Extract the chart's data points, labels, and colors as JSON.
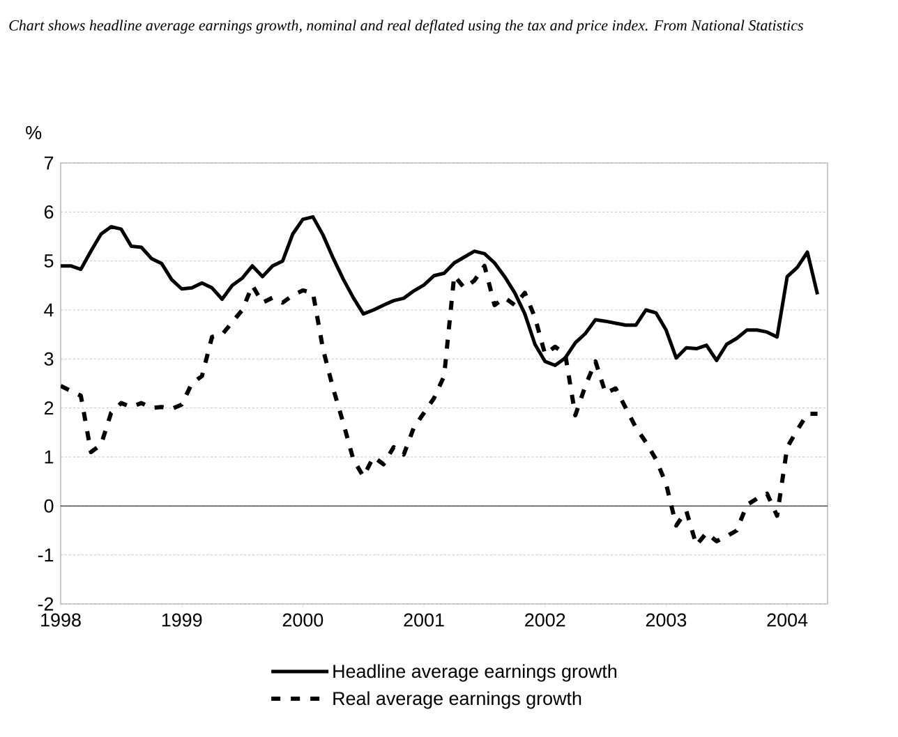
{
  "chart_data": {
    "type": "line",
    "title": "Chart shows headline average earnings growth, nominal and real deflated using the tax and price index. From National Statistics",
    "ylabel": "%",
    "x": [
      "1998-01",
      "1998-02",
      "1998-03",
      "1998-04",
      "1998-05",
      "1998-06",
      "1998-07",
      "1998-08",
      "1998-09",
      "1998-10",
      "1998-11",
      "1998-12",
      "1999-01",
      "1999-02",
      "1999-03",
      "1999-04",
      "1999-05",
      "1999-06",
      "1999-07",
      "1999-08",
      "1999-09",
      "1999-10",
      "1999-11",
      "1999-12",
      "2000-01",
      "2000-02",
      "2000-03",
      "2000-04",
      "2000-05",
      "2000-06",
      "2000-07",
      "2000-08",
      "2000-09",
      "2000-10",
      "2000-11",
      "2000-12",
      "2001-01",
      "2001-02",
      "2001-03",
      "2001-04",
      "2001-05",
      "2001-06",
      "2001-07",
      "2001-08",
      "2001-09",
      "2001-10",
      "2001-11",
      "2001-12",
      "2002-01",
      "2002-02",
      "2002-03",
      "2002-04",
      "2002-05",
      "2002-06",
      "2002-07",
      "2002-08",
      "2002-09",
      "2002-10",
      "2002-11",
      "2002-12",
      "2003-01",
      "2003-02",
      "2003-03",
      "2003-04",
      "2003-05",
      "2003-06",
      "2003-07",
      "2003-08",
      "2003-09",
      "2003-10",
      "2003-11",
      "2003-12",
      "2004-01",
      "2004-02",
      "2004-03",
      "2004-04"
    ],
    "series": [
      {
        "name": "Headline average earnings growth",
        "color": "#000000",
        "line_style": "solid",
        "values": [
          4.9,
          4.9,
          4.83,
          5.2,
          5.55,
          5.7,
          5.65,
          5.3,
          5.28,
          5.05,
          4.95,
          4.62,
          4.43,
          4.45,
          4.55,
          4.45,
          4.22,
          4.5,
          4.65,
          4.9,
          4.68,
          4.9,
          5.0,
          5.55,
          5.85,
          5.9,
          5.53,
          5.06,
          4.63,
          4.25,
          3.92,
          4.0,
          4.1,
          4.19,
          4.24,
          4.39,
          4.51,
          4.7,
          4.75,
          4.96,
          5.08,
          5.2,
          5.15,
          4.96,
          4.68,
          4.35,
          3.92,
          3.3,
          2.95,
          2.87,
          3.02,
          3.33,
          3.52,
          3.8,
          3.77,
          3.73,
          3.69,
          3.69,
          4.0,
          3.94,
          3.59,
          3.02,
          3.23,
          3.21,
          3.28,
          2.97,
          3.3,
          3.42,
          3.59,
          3.59,
          3.55,
          3.45,
          4.68,
          4.87,
          5.18,
          4.32
        ]
      },
      {
        "name": "Real average earnings growth",
        "color": "#000000",
        "line_style": "dashed",
        "values": [
          2.45,
          2.35,
          2.25,
          1.1,
          1.25,
          1.9,
          2.1,
          2.02,
          2.1,
          2.0,
          2.02,
          1.98,
          2.07,
          2.5,
          2.65,
          3.45,
          3.5,
          3.75,
          4.0,
          4.5,
          4.15,
          4.25,
          4.15,
          4.3,
          4.4,
          4.35,
          3.2,
          2.4,
          1.7,
          0.95,
          0.6,
          1.0,
          0.85,
          1.2,
          1.05,
          1.6,
          1.9,
          2.2,
          2.65,
          4.7,
          4.45,
          4.6,
          4.9,
          4.1,
          4.25,
          4.1,
          4.35,
          3.85,
          3.1,
          3.25,
          3.1,
          1.85,
          2.45,
          2.95,
          2.3,
          2.4,
          2.0,
          1.6,
          1.3,
          0.95,
          0.45,
          -0.4,
          -0.1,
          -0.8,
          -0.55,
          -0.72,
          -0.62,
          -0.5,
          0.02,
          0.15,
          0.25,
          -0.2,
          1.2,
          1.55,
          1.88,
          1.88
        ]
      }
    ],
    "xlim": [
      "1998-01",
      "2004-05"
    ],
    "xticks": [
      "1998",
      "1999",
      "2000",
      "2001",
      "2002",
      "2003",
      "2004"
    ],
    "ylim": [
      -2,
      7
    ],
    "yticks": [
      -2,
      -1,
      0,
      1,
      2,
      3,
      4,
      5,
      6,
      7
    ],
    "grid": "y",
    "legend": "bottom"
  }
}
